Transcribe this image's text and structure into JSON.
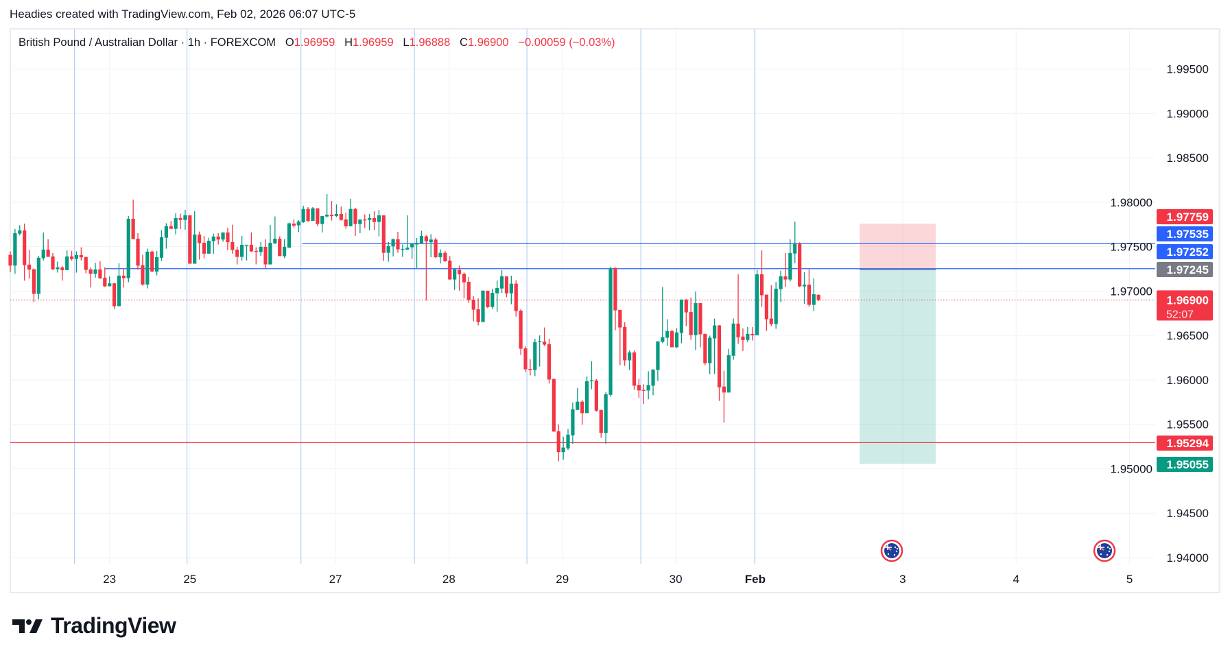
{
  "header": {
    "caption": "Headies created with TradingView.com, Feb 02, 2026 06:07 UTC-5"
  },
  "legend": {
    "symbol": "British Pound / Australian Dollar · 1h · FOREXCOM",
    "o_label": "O",
    "o": "1.96959",
    "h_label": "H",
    "h": "1.96959",
    "l_label": "L",
    "l": "1.96888",
    "c_label": "C",
    "c": "1.96900",
    "change": "−0.00059 (−0.03%)"
  },
  "logo": {
    "text": "TradingView"
  },
  "colors": {
    "up": "#089981",
    "down": "#f23645",
    "blue": "#2962ff",
    "gray": "#787b86",
    "session": "#a8c4f5",
    "grid": "#f0f3fa"
  },
  "chart_data": {
    "type": "candlestick",
    "title": "British Pound / Australian Dollar · 1h · FOREXCOM",
    "ylim": [
      1.9375,
      1.9985
    ],
    "y_ticks": [
      "1.99500",
      "1.99000",
      "1.98500",
      "1.98000",
      "1.97500",
      "1.97000",
      "1.96500",
      "1.96000",
      "1.95500",
      "1.95000",
      "1.94500",
      "1.94000"
    ],
    "x_ticks": [
      {
        "label": "23",
        "bar": 21
      },
      {
        "label": "25",
        "bar": 38
      },
      {
        "label": "27",
        "bar": 68.8
      },
      {
        "label": "28",
        "bar": 92.8
      },
      {
        "label": "29",
        "bar": 116.8
      },
      {
        "label": "30",
        "bar": 140.8
      },
      {
        "label": "Feb",
        "bar": 157.6
      },
      {
        "label": "3",
        "bar": 188.8
      },
      {
        "label": "4",
        "bar": 212.8
      },
      {
        "label": "5",
        "bar": 236.8
      }
    ],
    "session_breaks_bar": [
      13.6,
      37.4,
      61.5,
      85.5,
      109.3,
      133.4,
      157.5
    ],
    "candles_ohlc": [
      [
        1.97408,
        1.97447,
        1.97215,
        1.97287
      ],
      [
        1.97287,
        1.97699,
        1.97195,
        1.97652
      ],
      [
        1.97647,
        1.97742,
        1.97627,
        1.97683
      ],
      [
        1.97683,
        1.9776,
        1.97118,
        1.97292
      ],
      [
        1.97298,
        1.97465,
        1.97138,
        1.97241
      ],
      [
        1.97246,
        1.97254,
        1.96876,
        1.96969
      ],
      [
        1.96969,
        1.97395,
        1.96907,
        1.97375
      ],
      [
        1.9737,
        1.9766,
        1.97344,
        1.97467
      ],
      [
        1.97467,
        1.97583,
        1.97385,
        1.97385
      ],
      [
        1.9739,
        1.97429,
        1.97236,
        1.97246
      ],
      [
        1.97246,
        1.97331,
        1.97208,
        1.97267
      ],
      [
        1.97267,
        1.9728,
        1.97118,
        1.97236
      ],
      [
        1.97236,
        1.97459,
        1.97236,
        1.9739
      ],
      [
        1.9739,
        1.97452,
        1.97344,
        1.97362
      ],
      [
        1.97362,
        1.97447,
        1.97208,
        1.97406
      ],
      [
        1.97406,
        1.97493,
        1.97344,
        1.9738
      ],
      [
        1.97383,
        1.9739,
        1.972,
        1.97239
      ],
      [
        1.97244,
        1.97267,
        1.97041,
        1.97195
      ],
      [
        1.97195,
        1.97318,
        1.97151,
        1.97244
      ],
      [
        1.97244,
        1.97336,
        1.97138,
        1.97143
      ],
      [
        1.97151,
        1.97267,
        1.97046,
        1.97054
      ],
      [
        1.97054,
        1.97164,
        1.97054,
        1.97087
      ],
      [
        1.97087,
        1.97092,
        1.96799,
        1.9683
      ],
      [
        1.9683,
        1.97313,
        1.9683,
        1.97174
      ],
      [
        1.97174,
        1.97254,
        1.97041,
        1.97146
      ],
      [
        1.97146,
        1.97845,
        1.971,
        1.97814
      ],
      [
        1.97814,
        1.9803,
        1.97585,
        1.97585
      ],
      [
        1.9759,
        1.97652,
        1.97241,
        1.97287
      ],
      [
        1.97292,
        1.97408,
        1.97061,
        1.97074
      ],
      [
        1.97074,
        1.97478,
        1.9703,
        1.97444
      ],
      [
        1.97444,
        1.97457,
        1.97215,
        1.9722
      ],
      [
        1.9722,
        1.97452,
        1.97177,
        1.97382
      ],
      [
        1.97375,
        1.97686,
        1.97339,
        1.97606
      ],
      [
        1.97601,
        1.97763,
        1.97478,
        1.9773
      ],
      [
        1.9773,
        1.97789,
        1.97699,
        1.97701
      ],
      [
        1.97701,
        1.97876,
        1.97639,
        1.97822
      ],
      [
        1.97822,
        1.97871,
        1.97699,
        1.97801
      ],
      [
        1.97801,
        1.97914,
        1.97691,
        1.97853
      ],
      [
        1.97853,
        1.97853,
        1.97308,
        1.97308
      ],
      [
        1.97308,
        1.97899,
        1.97308,
        1.97637
      ],
      [
        1.97637,
        1.9767,
        1.97354,
        1.97539
      ],
      [
        1.97544,
        1.97621,
        1.9737,
        1.97421
      ],
      [
        1.97421,
        1.97601,
        1.97421,
        1.97567
      ],
      [
        1.97562,
        1.97647,
        1.97421,
        1.97614
      ],
      [
        1.97614,
        1.97652,
        1.97524,
        1.9758
      ],
      [
        1.9758,
        1.9766,
        1.97555,
        1.9766
      ],
      [
        1.9766,
        1.97714,
        1.9746,
        1.9755
      ],
      [
        1.97552,
        1.97747,
        1.97421,
        1.97462
      ],
      [
        1.97467,
        1.97498,
        1.973,
        1.97385
      ],
      [
        1.97385,
        1.97621,
        1.97344,
        1.97521
      ],
      [
        1.97516,
        1.97521,
        1.97344,
        1.97521
      ],
      [
        1.97521,
        1.9766,
        1.97442,
        1.97447
      ],
      [
        1.97452,
        1.97493,
        1.973,
        1.97447
      ],
      [
        1.97439,
        1.97552,
        1.97395,
        1.97498
      ],
      [
        1.97498,
        1.97583,
        1.97254,
        1.973
      ],
      [
        1.973,
        1.97745,
        1.973,
        1.97544
      ],
      [
        1.97537,
        1.9784,
        1.97529,
        1.9759
      ],
      [
        1.9759,
        1.97616,
        1.97393,
        1.97393
      ],
      [
        1.97393,
        1.97583,
        1.9737,
        1.97498
      ],
      [
        1.9749,
        1.97771,
        1.97483,
        1.97763
      ],
      [
        1.9776,
        1.97807,
        1.97717,
        1.97737
      ],
      [
        1.9774,
        1.97799,
        1.97663,
        1.97783
      ],
      [
        1.97776,
        1.97961,
        1.97768,
        1.97925
      ],
      [
        1.97925,
        1.97945,
        1.97781,
        1.97789
      ],
      [
        1.97791,
        1.97945,
        1.97791,
        1.97932
      ],
      [
        1.97932,
        1.97932,
        1.97729,
        1.97755
      ],
      [
        1.97755,
        1.97845,
        1.9766,
        1.97845
      ],
      [
        1.9784,
        1.98092,
        1.97827,
        1.9786
      ],
      [
        1.9786,
        1.98015,
        1.97794,
        1.97845
      ],
      [
        1.97845,
        1.97976,
        1.97832,
        1.97868
      ],
      [
        1.97868,
        1.97953,
        1.97794,
        1.97801
      ],
      [
        1.97806,
        1.97884,
        1.97701,
        1.97729
      ],
      [
        1.97729,
        1.98038,
        1.97729,
        1.97925
      ],
      [
        1.97925,
        1.97938,
        1.97621,
        1.97755
      ],
      [
        1.97755,
        1.97806,
        1.97652,
        1.97806
      ],
      [
        1.97806,
        1.97863,
        1.97709,
        1.97801
      ],
      [
        1.97801,
        1.97868,
        1.97686,
        1.97822
      ],
      [
        1.97822,
        1.97899,
        1.97686,
        1.97778
      ],
      [
        1.97778,
        1.97914,
        1.97616,
        1.97853
      ],
      [
        1.97853,
        1.97853,
        1.97339,
        1.97431
      ],
      [
        1.97431,
        1.97552,
        1.97331,
        1.97506
      ],
      [
        1.97503,
        1.97591,
        1.9739,
        1.97583
      ],
      [
        1.97583,
        1.97668,
        1.97431,
        1.9747
      ],
      [
        1.9747,
        1.97524,
        1.97385,
        1.97475
      ],
      [
        1.97467,
        1.97853,
        1.97467,
        1.9749
      ],
      [
        1.97493,
        1.97532,
        1.97362,
        1.97532
      ],
      [
        1.97524,
        1.97598,
        1.97259,
        1.97544
      ],
      [
        1.97537,
        1.9768,
        1.97529,
        1.97621
      ],
      [
        1.97616,
        1.97628,
        1.96894,
        1.9756
      ],
      [
        1.9755,
        1.9764,
        1.97381,
        1.9758
      ],
      [
        1.9758,
        1.976,
        1.9737,
        1.97381
      ],
      [
        1.97381,
        1.9747,
        1.97312,
        1.9743
      ],
      [
        1.9743,
        1.9745,
        1.9733,
        1.97335
      ],
      [
        1.97343,
        1.97394,
        1.9713,
        1.9713
      ],
      [
        1.9713,
        1.97253,
        1.97014,
        1.97245
      ],
      [
        1.9724,
        1.97286,
        1.97004,
        1.97189
      ],
      [
        1.97194,
        1.97209,
        1.96919,
        1.97099
      ],
      [
        1.97104,
        1.97158,
        1.96867,
        1.96898
      ],
      [
        1.96903,
        1.96942,
        1.96659,
        1.9679
      ],
      [
        1.96795,
        1.96916,
        1.96613,
        1.96652
      ],
      [
        1.96652,
        1.97009,
        1.96652,
        1.97004
      ],
      [
        1.97004,
        1.97004,
        1.96808,
        1.96819
      ],
      [
        1.96821,
        1.97027,
        1.96798,
        1.9698
      ],
      [
        1.96975,
        1.97119,
        1.96767,
        1.97034
      ],
      [
        1.97029,
        1.97235,
        1.96978,
        1.97166
      ],
      [
        1.97166,
        1.97166,
        1.96932,
        1.96975
      ],
      [
        1.96975,
        1.97173,
        1.96852,
        1.97083
      ],
      [
        1.97083,
        1.97122,
        1.96713,
        1.96775
      ],
      [
        1.9678,
        1.96796,
        1.96282,
        1.96351
      ],
      [
        1.96356,
        1.96377,
        1.96089,
        1.9612
      ],
      [
        1.96122,
        1.96233,
        1.9605,
        1.9612
      ],
      [
        1.96112,
        1.96464,
        1.96042,
        1.96426
      ],
      [
        1.96431,
        1.96502,
        1.9615,
        1.96436
      ],
      [
        1.96431,
        1.9659,
        1.96382,
        1.96397
      ],
      [
        1.96402,
        1.96464,
        1.95958,
        1.96004
      ],
      [
        1.9601,
        1.96017,
        1.95418,
        1.95418
      ],
      [
        1.95423,
        1.955,
        1.95084,
        1.95187
      ],
      [
        1.95187,
        1.95361,
        1.951,
        1.95238
      ],
      [
        1.9523,
        1.95446,
        1.9521,
        1.95384
      ],
      [
        1.95377,
        1.95747,
        1.95279,
        1.9567
      ],
      [
        1.95662,
        1.95909,
        1.95662,
        1.95755
      ],
      [
        1.95755,
        1.95773,
        1.95495,
        1.95626
      ],
      [
        1.95626,
        1.9604,
        1.95626,
        1.95986
      ],
      [
        1.95991,
        1.96212,
        1.95896,
        1.95996
      ],
      [
        1.95994,
        1.96009,
        1.95642,
        1.95654
      ],
      [
        1.95662,
        1.95662,
        1.95349,
        1.95403
      ],
      [
        1.95403,
        1.95862,
        1.95279,
        1.95839
      ],
      [
        1.95832,
        1.97274,
        1.95811,
        1.97256
      ],
      [
        1.97261,
        1.97266,
        1.96559,
        1.96783
      ],
      [
        1.96788,
        1.96788,
        1.96166,
        1.9659
      ],
      [
        1.96595,
        1.96649,
        1.96158,
        1.9622
      ],
      [
        1.9622,
        1.96333,
        1.96112,
        1.9631
      ],
      [
        1.9631,
        1.96333,
        1.95889,
        1.95935
      ],
      [
        1.95943,
        1.96012,
        1.95796,
        1.95881
      ],
      [
        1.95886,
        1.9595,
        1.95727,
        1.95884
      ],
      [
        1.95881,
        1.96097,
        1.95781,
        1.95943
      ],
      [
        1.95935,
        1.96117,
        1.95827,
        1.96117
      ],
      [
        1.96112,
        1.96434,
        1.95989,
        1.96434
      ],
      [
        1.96428,
        1.97045,
        1.96413,
        1.9648
      ],
      [
        1.96475,
        1.96683,
        1.96382,
        1.9655
      ],
      [
        1.9655,
        1.96565,
        1.96367,
        1.96367
      ],
      [
        1.96367,
        1.96583,
        1.96359,
        1.96534
      ],
      [
        1.96529,
        1.96904,
        1.96413,
        1.96904
      ],
      [
        1.96904,
        1.96912,
        1.96606,
        1.9676
      ],
      [
        1.96765,
        1.96927,
        1.96452,
        1.96505
      ],
      [
        1.96505,
        1.96996,
        1.96336,
        1.96865
      ],
      [
        1.96865,
        1.96865,
        1.96367,
        1.96513
      ],
      [
        1.96518,
        1.96518,
        1.96166,
        1.96189
      ],
      [
        1.96189,
        1.96498,
        1.96066,
        1.96475
      ],
      [
        1.96467,
        1.9669,
        1.96066,
        1.96613
      ],
      [
        1.96613,
        1.96618,
        1.95763,
        1.95917
      ],
      [
        1.95925,
        1.96105,
        1.95519,
        1.95858
      ],
      [
        1.95858,
        1.96349,
        1.95858,
        1.96279
      ],
      [
        1.96272,
        1.9669,
        1.96228,
        1.96634
      ],
      [
        1.96634,
        1.97189,
        1.96405,
        1.9648
      ],
      [
        1.96488,
        1.9658,
        1.96326,
        1.96449
      ],
      [
        1.96449,
        1.96595,
        1.96426,
        1.96518
      ],
      [
        1.96518,
        1.96595,
        1.96444,
        1.96503
      ],
      [
        1.96503,
        1.97235,
        1.96503,
        1.97189
      ],
      [
        1.97189,
        1.97459,
        1.96822,
        1.96953
      ],
      [
        1.9696,
        1.9696,
        1.96552,
        1.96683
      ],
      [
        1.9669,
        1.97066,
        1.96606,
        1.96629
      ],
      [
        1.96629,
        1.97104,
        1.96575,
        1.97027
      ],
      [
        1.97022,
        1.97228,
        1.96876,
        1.97166
      ],
      [
        1.97166,
        1.97428,
        1.97045,
        1.9713
      ],
      [
        1.9713,
        1.97582,
        1.97107,
        1.97428
      ],
      [
        1.97423,
        1.97783,
        1.97315,
        1.97533
      ],
      [
        1.97533,
        1.97549,
        1.97045,
        1.97053
      ],
      [
        1.97053,
        1.97212,
        1.96857,
        1.97073
      ],
      [
        1.97073,
        1.97243,
        1.96822,
        1.96845
      ],
      [
        1.96845,
        1.97143,
        1.96775,
        1.96965
      ],
      [
        1.96959,
        1.96959,
        1.96888,
        1.969
      ]
    ],
    "horizontal_lines": [
      {
        "price": 1.97535,
        "color": "#2962ff",
        "from_bar": 61.8
      },
      {
        "price": 1.97252,
        "color": "#2962ff",
        "from_bar": 20
      },
      {
        "price": 1.95294,
        "color": "#f23645",
        "from_bar": 0
      }
    ],
    "current_price": {
      "price": 1.969,
      "label": "1.96900",
      "countdown": "52:07"
    },
    "position": {
      "side": "short",
      "entry": 1.97245,
      "stop": 1.97759,
      "target": 1.95055,
      "from_bar": 179.7,
      "to_bar": 195.8
    },
    "price_labels": [
      {
        "text": "1.97759",
        "price": 1.97759,
        "bg": "#f23645"
      },
      {
        "text": "1.97535",
        "price": 1.97535,
        "bg": "#2962ff"
      },
      {
        "text": "1.97252",
        "price": 1.97252,
        "bg": "#2962ff"
      },
      {
        "text": "1.97245",
        "price": 1.97245,
        "bg": "#787b86"
      },
      {
        "text": "1.95294",
        "price": 1.95294,
        "bg": "#f23645"
      },
      {
        "text": "1.95055",
        "price": 1.95055,
        "bg": "#089981"
      }
    ],
    "event_markers": [
      {
        "name": "australia-flag",
        "bar": 186.5
      },
      {
        "name": "australia-flag",
        "bar": 231.5
      }
    ]
  }
}
